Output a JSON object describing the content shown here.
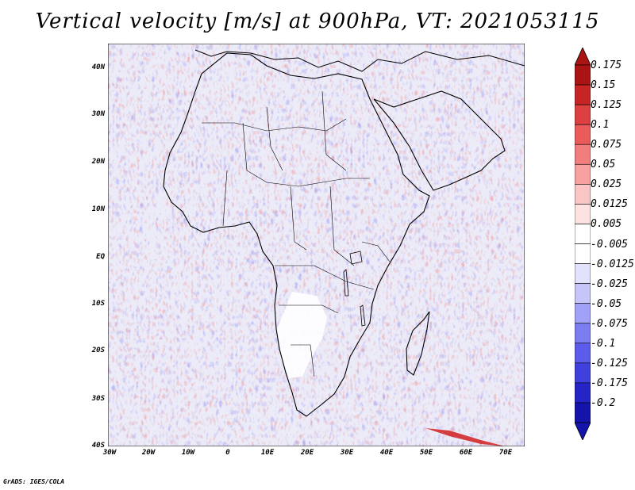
{
  "title": "Vertical velocity [m/s] at 900hPa, VT: 2021053115",
  "footer": "GrADS: IGES/COLA",
  "y_ticks": [
    "40N",
    "30N",
    "20N",
    "10N",
    "EQ",
    "10S",
    "20S",
    "30S",
    "40S"
  ],
  "x_ticks": [
    "30W",
    "20W",
    "10W",
    "0",
    "10E",
    "20E",
    "30E",
    "40E",
    "50E",
    "60E",
    "70E"
  ],
  "colorbar": {
    "labels": [
      "0.175",
      "0.15",
      "0.125",
      "0.1",
      "0.075",
      "0.05",
      "0.025",
      "0.0125",
      "0.005",
      "-0.005",
      "-0.0125",
      "-0.025",
      "-0.05",
      "-0.075",
      "-0.1",
      "-0.125",
      "-0.175",
      "-0.2"
    ],
    "colors": [
      "#aa1414",
      "#c72525",
      "#dc4040",
      "#ea5c5c",
      "#f27d7d",
      "#f7a1a1",
      "#fac5c5",
      "#fde2e2",
      "#ffffff",
      "#ffffff",
      "#e2e2fd",
      "#c5c5fa",
      "#a1a1f7",
      "#7d7df2",
      "#5c5cea",
      "#4040dc",
      "#2525c7",
      "#1414aa"
    ]
  },
  "colors": {
    "ocean_bg": "#ebe9f8",
    "land_mix": "#f0e6f0",
    "red": "#e85050",
    "blue": "#6060e8"
  }
}
